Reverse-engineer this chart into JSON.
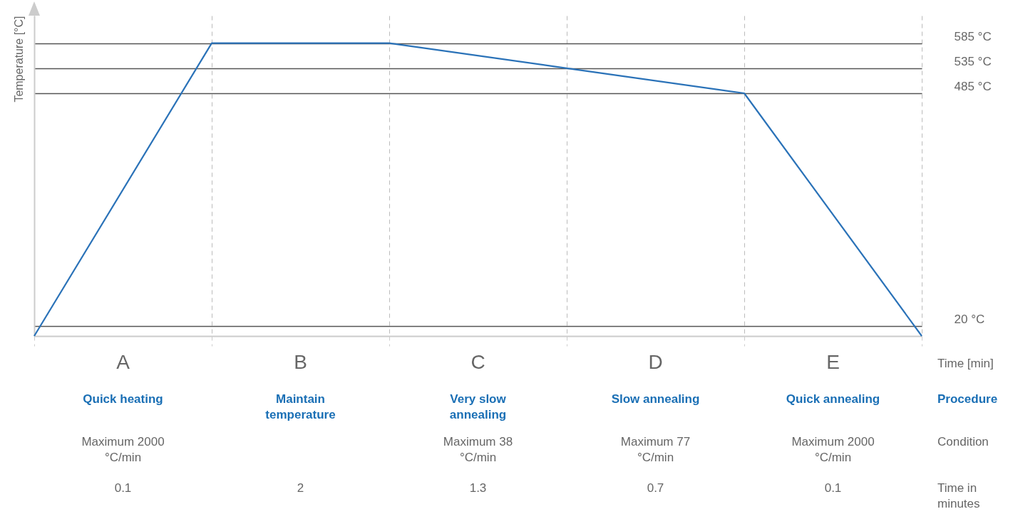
{
  "chart_data": {
    "type": "line",
    "ylabel": "Temperature [°C]",
    "xlabel": "Time [min]",
    "categories": [
      null,
      null,
      null,
      null,
      null,
      null
    ],
    "series": [
      {
        "color": "#2a72b8",
        "values": [
          0,
          585,
          585,
          535,
          485,
          0
        ]
      }
    ],
    "ylim": [
      0,
      640
    ],
    "yticks": [
      {
        "value": 20,
        "label": "20 °C"
      },
      {
        "value": 485,
        "label": "485 °C"
      },
      {
        "value": 535,
        "label": "535 °C"
      },
      {
        "value": 585,
        "label": "585 °C"
      }
    ],
    "grid": true,
    "annotations": [
      "A",
      "B",
      "C",
      "D",
      "E",
      "Quick heating",
      "Maintain temperature",
      "Very slow annealing",
      "Slow annealing",
      "Quick annealing",
      "Procedure",
      "Maximum 2000 °C/min",
      null,
      "Maximum 38 °C/min",
      "Maximum 77 °C/min",
      "Maximum 2000 °C/min",
      "Condition",
      "0.1",
      "2",
      "1.3",
      "0.7",
      "0.1",
      "Time in minutes"
    ]
  }
}
